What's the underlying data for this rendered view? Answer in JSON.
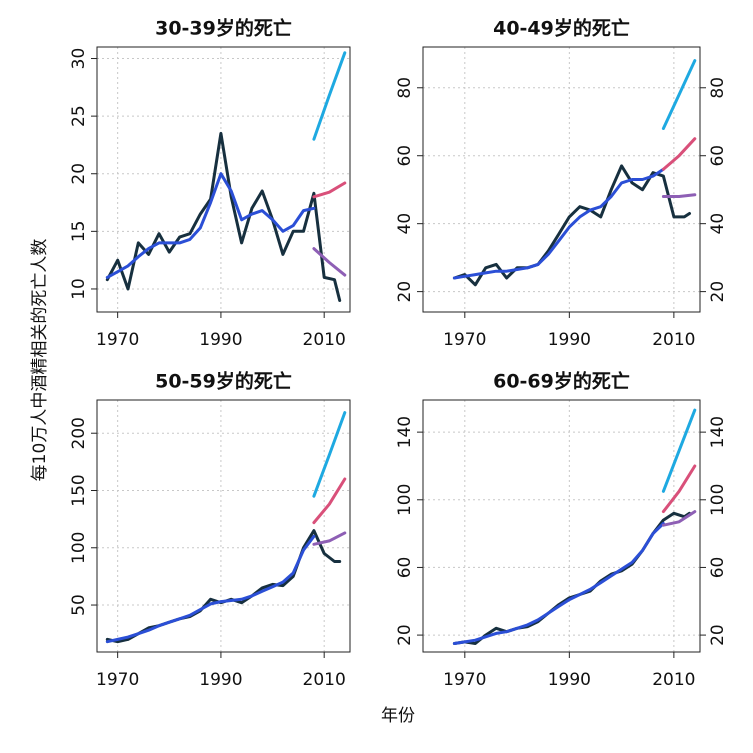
{
  "ylabel": "每10万人中酒精相关的死亡人数",
  "xlabel": "年份",
  "chart_data": [
    {
      "type": "line",
      "title": "30-39岁的死亡",
      "xlim": [
        1966,
        2015
      ],
      "xticks": [
        1970,
        1990,
        2010
      ],
      "ylim": [
        8,
        31
      ],
      "yticks": [
        10,
        15,
        20,
        25,
        30
      ],
      "grid": true,
      "series": [
        {
          "color": "#17303f",
          "x": [
            1968,
            1970,
            1972,
            1974,
            1976,
            1978,
            1980,
            1982,
            1984,
            1986,
            1988,
            1990,
            1992,
            1994,
            1996,
            1998,
            2000,
            2002,
            2004,
            2006,
            2008,
            2010,
            2012,
            2013
          ],
          "values": [
            10.8,
            12.5,
            10,
            14,
            13,
            14.8,
            13.2,
            14.5,
            14.8,
            16.5,
            17.8,
            23.5,
            18,
            14,
            17,
            18.5,
            16,
            13,
            15,
            15,
            18.3,
            11,
            10.8,
            9
          ]
        },
        {
          "color": "#2b4fd6",
          "x": [
            1968,
            1970,
            1972,
            1974,
            1976,
            1978,
            1980,
            1982,
            1984,
            1986,
            1988,
            1990,
            1992,
            1994,
            1996,
            1998,
            2000,
            2002,
            2004,
            2006,
            2008
          ],
          "values": [
            11,
            11.5,
            12,
            12.8,
            13.5,
            14,
            14,
            14,
            14.3,
            15.3,
            17.5,
            20,
            18.5,
            16,
            16.5,
            16.8,
            16,
            15,
            15.5,
            16.8,
            17
          ]
        },
        {
          "color": "#1ea9e1",
          "x": [
            2008,
            2011,
            2014
          ],
          "values": [
            23,
            26.8,
            30.5
          ]
        },
        {
          "color": "#d9507a",
          "x": [
            2008,
            2011,
            2014
          ],
          "values": [
            18,
            18.4,
            19.2
          ]
        },
        {
          "color": "#8e5fb5",
          "x": [
            2008,
            2011,
            2014
          ],
          "values": [
            13.5,
            12.3,
            11.2
          ]
        }
      ]
    },
    {
      "type": "line",
      "title": "40-49岁的死亡",
      "xlim": [
        1962,
        2015
      ],
      "xticks": [
        1970,
        1990,
        2010
      ],
      "ylim": [
        14,
        92
      ],
      "yticks": [
        20,
        40,
        60,
        80
      ],
      "y2ticks": [
        20,
        40,
        60,
        80
      ],
      "grid": true,
      "series": [
        {
          "color": "#17303f",
          "x": [
            1968,
            1970,
            1972,
            1974,
            1976,
            1978,
            1980,
            1982,
            1984,
            1986,
            1988,
            1990,
            1992,
            1994,
            1996,
            1998,
            2000,
            2002,
            2004,
            2006,
            2008,
            2010,
            2012,
            2013
          ],
          "values": [
            24,
            25,
            22,
            27,
            28,
            24,
            27,
            27,
            28,
            32,
            37,
            42,
            45,
            44,
            42,
            50,
            57,
            52,
            50,
            55,
            54,
            42,
            42,
            43
          ]
        },
        {
          "color": "#2b4fd6",
          "x": [
            1968,
            1970,
            1972,
            1974,
            1976,
            1978,
            1980,
            1982,
            1984,
            1986,
            1988,
            1990,
            1992,
            1994,
            1996,
            1998,
            2000,
            2002,
            2004,
            2006,
            2008
          ],
          "values": [
            24,
            24.5,
            25,
            25.5,
            26,
            26,
            26.5,
            27,
            28,
            31,
            35,
            39,
            42,
            44,
            45,
            48,
            52,
            53,
            53,
            54,
            56
          ]
        },
        {
          "color": "#1ea9e1",
          "x": [
            2008,
            2011,
            2014
          ],
          "values": [
            68,
            78,
            88
          ]
        },
        {
          "color": "#d9507a",
          "x": [
            2008,
            2011,
            2014
          ],
          "values": [
            56,
            60,
            65
          ]
        },
        {
          "color": "#8e5fb5",
          "x": [
            2008,
            2011,
            2014
          ],
          "values": [
            48,
            48,
            48.5
          ]
        }
      ]
    },
    {
      "type": "line",
      "title": "50-59岁的死亡",
      "xlim": [
        1966,
        2015
      ],
      "xticks": [
        1970,
        1990,
        2010
      ],
      "ylim": [
        9,
        229
      ],
      "yticks": [
        50,
        100,
        150,
        200
      ],
      "grid": true,
      "series": [
        {
          "color": "#17303f",
          "x": [
            1968,
            1970,
            1972,
            1974,
            1976,
            1978,
            1980,
            1982,
            1984,
            1986,
            1988,
            1990,
            1992,
            1994,
            1996,
            1998,
            2000,
            2002,
            2004,
            2006,
            2008,
            2010,
            2012,
            2013
          ],
          "values": [
            20,
            18,
            20,
            25,
            30,
            32,
            35,
            38,
            40,
            45,
            55,
            52,
            55,
            52,
            58,
            65,
            68,
            67,
            75,
            100,
            115,
            95,
            88,
            88
          ]
        },
        {
          "color": "#2b4fd6",
          "x": [
            1968,
            1970,
            1972,
            1974,
            1976,
            1978,
            1980,
            1982,
            1984,
            1986,
            1988,
            1990,
            1992,
            1994,
            1996,
            1998,
            2000,
            2002,
            2004,
            2006,
            2008
          ],
          "values": [
            18,
            20,
            22,
            25,
            28,
            32,
            35,
            38,
            41,
            46,
            51,
            53,
            54,
            55,
            58,
            62,
            66,
            70,
            78,
            98,
            110
          ]
        },
        {
          "color": "#1ea9e1",
          "x": [
            2008,
            2011,
            2014
          ],
          "values": [
            145,
            181,
            218
          ]
        },
        {
          "color": "#d9507a",
          "x": [
            2008,
            2011,
            2014
          ],
          "values": [
            122,
            138,
            160
          ]
        },
        {
          "color": "#8e5fb5",
          "x": [
            2008,
            2011,
            2014
          ],
          "values": [
            103,
            106,
            113
          ]
        }
      ]
    },
    {
      "type": "line",
      "title": "60-69岁的死亡",
      "xlim": [
        1962,
        2015
      ],
      "xticks": [
        1970,
        1990,
        2010
      ],
      "ylim": [
        10,
        159
      ],
      "yticks": [
        20,
        60,
        100,
        140
      ],
      "y2ticks": [
        20,
        60,
        100,
        140
      ],
      "grid": true,
      "series": [
        {
          "color": "#17303f",
          "x": [
            1968,
            1970,
            1972,
            1974,
            1976,
            1978,
            1980,
            1982,
            1984,
            1986,
            1988,
            1990,
            1992,
            1994,
            1996,
            1998,
            2000,
            2002,
            2004,
            2006,
            2008,
            2010,
            2012,
            2013
          ],
          "values": [
            15,
            16,
            15,
            20,
            24,
            22,
            24,
            25,
            28,
            33,
            38,
            42,
            44,
            46,
            52,
            56,
            58,
            62,
            70,
            80,
            88,
            92,
            90,
            92
          ]
        },
        {
          "color": "#2b4fd6",
          "x": [
            1968,
            1970,
            1972,
            1974,
            1976,
            1978,
            1980,
            1982,
            1984,
            1986,
            1988,
            1990,
            1992,
            1994,
            1996,
            1998,
            2000,
            2002,
            2004,
            2006,
            2008
          ],
          "values": [
            15,
            16,
            17,
            19,
            21,
            22,
            24,
            26,
            29,
            33,
            37,
            41,
            44,
            47,
            51,
            55,
            59,
            63,
            70,
            80,
            86
          ]
        },
        {
          "color": "#1ea9e1",
          "x": [
            2008,
            2011,
            2014
          ],
          "values": [
            105,
            129,
            153
          ]
        },
        {
          "color": "#d9507a",
          "x": [
            2008,
            2011,
            2014
          ],
          "values": [
            93,
            105,
            120
          ]
        },
        {
          "color": "#8e5fb5",
          "x": [
            2008,
            2011,
            2014
          ],
          "values": [
            85,
            87,
            93
          ]
        }
      ]
    }
  ]
}
